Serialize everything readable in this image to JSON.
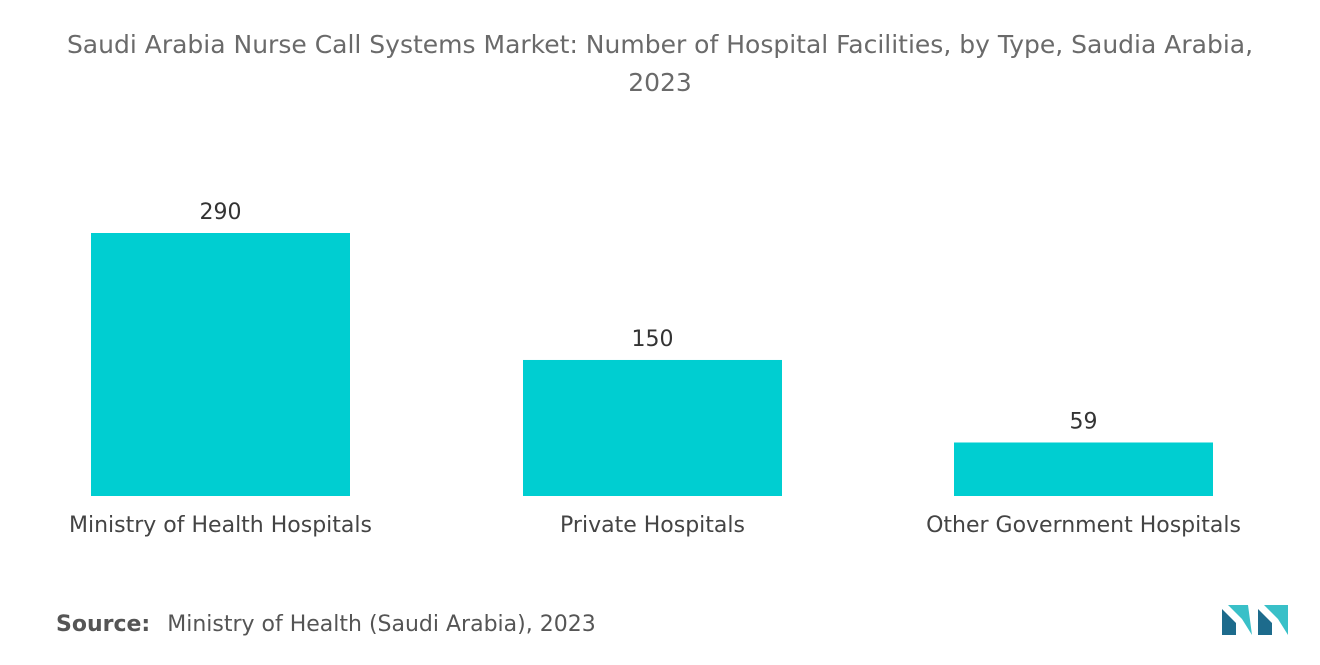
{
  "title": "Saudi Arabia Nurse Call Systems Market: Number of Hospital Facilities, by Type, Saudia Arabia, 2023",
  "source": {
    "label": "Source:",
    "text": "Ministry of Health (Saudi Arabia), 2023"
  },
  "colors": {
    "bar": "#00ced1",
    "logo_dark": "#1d6b8c",
    "logo_light": "#39c0c8"
  },
  "logo_icon": "mordor-intelligence-logo-icon",
  "chart_data": {
    "type": "bar",
    "title": "Saudi Arabia Nurse Call Systems Market: Number of Hospital Facilities, by Type, Saudia Arabia, 2023",
    "categories": [
      "Ministry of Health Hospitals",
      "Private Hospitals",
      "Other Government Hospitals"
    ],
    "values": [
      290,
      150,
      59
    ],
    "value_labels": [
      "290",
      "150",
      "59"
    ],
    "xlabel": "",
    "ylabel": "",
    "ylim": [
      0,
      290
    ],
    "grid": false,
    "legend": "none"
  }
}
